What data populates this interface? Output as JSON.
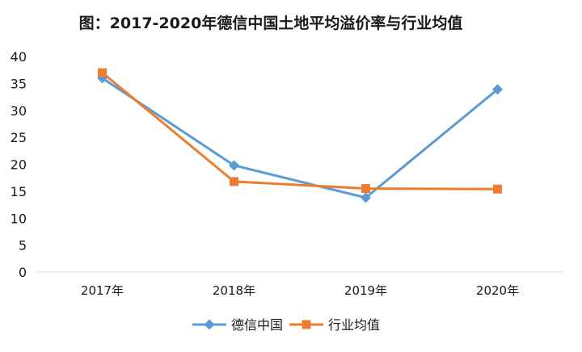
{
  "chart_data": {
    "type": "line",
    "title": "图：2017-2020年德信中国土地平均溢价率与行业均值",
    "xlabel": "",
    "ylabel": "",
    "categories": [
      "2017年",
      "2018年",
      "2019年",
      "2020年"
    ],
    "ylim": [
      0,
      40
    ],
    "yticks": [
      0,
      5,
      10,
      15,
      20,
      25,
      30,
      35,
      40
    ],
    "grid": false,
    "legend_position": "bottom",
    "series": [
      {
        "name": "德信中国",
        "values": [
          36,
          19.8,
          13.8,
          33.9
        ],
        "color": "#5b9bd5",
        "marker": "diamond"
      },
      {
        "name": "行业均值",
        "values": [
          37,
          16.8,
          15.5,
          15.4
        ],
        "color": "#ed7d31",
        "marker": "square"
      }
    ]
  }
}
